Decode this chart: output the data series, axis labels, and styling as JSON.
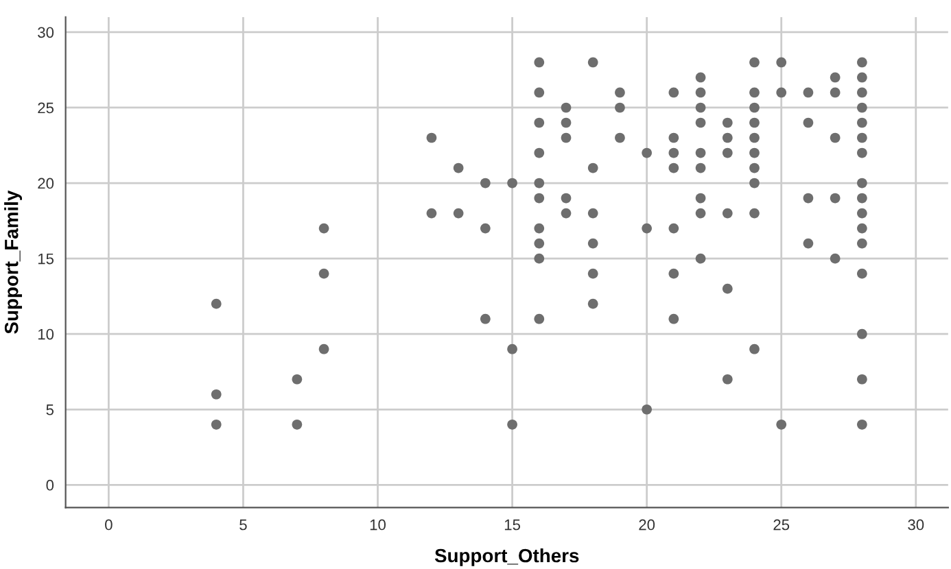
{
  "chart_data": {
    "type": "scatter",
    "xlabel": "Support_Others",
    "ylabel": "Support_Family",
    "color": "#6e6e6e",
    "x": [
      4,
      4,
      4,
      7,
      7,
      8,
      8,
      8,
      12,
      12,
      13,
      13,
      14,
      14,
      14,
      15,
      15,
      15,
      16,
      16,
      16,
      16,
      16,
      16,
      16,
      16,
      16,
      16,
      17,
      17,
      17,
      17,
      17,
      18,
      18,
      18,
      18,
      18,
      18,
      19,
      19,
      19,
      20,
      20,
      20,
      21,
      21,
      21,
      21,
      21,
      21,
      21,
      22,
      22,
      22,
      22,
      22,
      22,
      22,
      22,
      22,
      23,
      23,
      23,
      23,
      23,
      23,
      24,
      24,
      24,
      24,
      24,
      24,
      24,
      24,
      24,
      24,
      25,
      25,
      25,
      26,
      26,
      26,
      26,
      27,
      27,
      27,
      27,
      27,
      28,
      28,
      28,
      28,
      28,
      28,
      28,
      28,
      28,
      28,
      28,
      28,
      28,
      28,
      28,
      28
    ],
    "values": [
      12,
      6,
      4,
      7,
      4,
      17,
      14,
      9,
      23,
      18,
      21,
      18,
      20,
      17,
      11,
      20,
      9,
      4,
      28,
      26,
      24,
      22,
      20,
      19,
      17,
      16,
      15,
      11,
      25,
      24,
      23,
      19,
      18,
      28,
      21,
      18,
      16,
      14,
      12,
      26,
      25,
      23,
      22,
      17,
      5,
      26,
      23,
      22,
      21,
      17,
      14,
      11,
      27,
      26,
      25,
      24,
      22,
      21,
      19,
      18,
      15,
      24,
      23,
      22,
      18,
      13,
      7,
      28,
      26,
      25,
      24,
      23,
      22,
      21,
      20,
      18,
      9,
      28,
      26,
      4,
      26,
      24,
      19,
      16,
      27,
      26,
      23,
      19,
      15,
      28,
      27,
      26,
      25,
      24,
      23,
      22,
      20,
      19,
      18,
      17,
      16,
      14,
      10,
      7,
      4
    ],
    "xlim": [
      -1.6,
      31.2
    ],
    "ylim": [
      -1.5,
      31
    ],
    "xticks": [
      0,
      5,
      10,
      15,
      20,
      25,
      30
    ],
    "yticks": [
      0,
      5,
      10,
      15,
      20,
      25,
      30
    ],
    "grid": true,
    "marker": "circle"
  }
}
